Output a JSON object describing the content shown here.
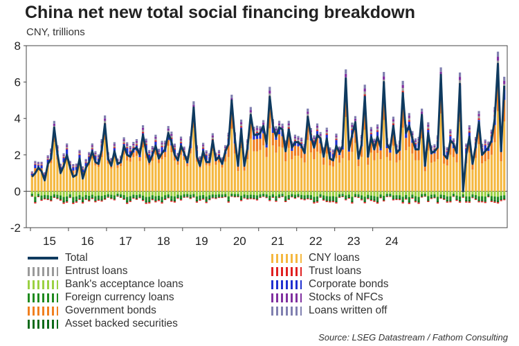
{
  "header": {
    "title": "China net new total social financing breakdown",
    "subtitle": "CNY, trillions"
  },
  "footer": {
    "source": "Source: LSEG Datastream / Fathom Consulting"
  },
  "colors": {
    "total": "#0f3a5f",
    "entrust": "#9a9a9a",
    "acceptance": "#9bd143",
    "foreign": "#1f8b1f",
    "government": "#f08020",
    "abs": "#0e6b1a",
    "cny": "#f5b840",
    "trust": "#e02020",
    "corporate": "#2030d0",
    "stocks": "#8030a0",
    "written_off": "#8080b0"
  },
  "legend": [
    {
      "key": "total",
      "label": "Total",
      "style": "line"
    },
    {
      "key": "entrust",
      "label": "Entrust loans",
      "style": "bar"
    },
    {
      "key": "acceptance",
      "label": "Bank's acceptance loans",
      "style": "bar"
    },
    {
      "key": "foreign",
      "label": "Foreign currency loans",
      "style": "bar"
    },
    {
      "key": "government",
      "label": "Government bonds",
      "style": "bar"
    },
    {
      "key": "abs",
      "label": "Asset backed securities",
      "style": "bar"
    },
    {
      "key": "cny",
      "label": "CNY loans",
      "style": "bar"
    },
    {
      "key": "trust",
      "label": "Trust loans",
      "style": "bar"
    },
    {
      "key": "corporate",
      "label": "Corporate bonds",
      "style": "bar"
    },
    {
      "key": "stocks",
      "label": "Stocks of NFCs",
      "style": "bar"
    },
    {
      "key": "written_off",
      "label": "Loans written off",
      "style": "bar"
    }
  ],
  "chart_data": {
    "type": "bar",
    "title": "China net new total social financing breakdown",
    "ylabel": "CNY, trillions",
    "ylim": [
      -2,
      8
    ],
    "yticks": [
      -2,
      0,
      2,
      4,
      6,
      8
    ],
    "x_start": "2015-01",
    "x_tick_labels": [
      "15",
      "16",
      "17",
      "18",
      "19",
      "20",
      "21",
      "22",
      "23",
      "24"
    ],
    "total": [
      0.8,
      1.0,
      1.3,
      1.1,
      0.6,
      1.5,
      1.8,
      3.5,
      2.1,
      1.0,
      1.4,
      2.0,
      1.3,
      0.8,
      0.9,
      1.8,
      0.7,
      1.3,
      1.6,
      2.2,
      1.6,
      1.5,
      2.3,
      3.7,
      1.8,
      1.4,
      2.2,
      1.5,
      1.6,
      2.5,
      2.0,
      1.9,
      2.3,
      2.4,
      2.0,
      3.1,
      2.2,
      1.6,
      2.0,
      2.5,
      1.8,
      2.1,
      2.3,
      3.2,
      2.7,
      2.0,
      1.7,
      2.5,
      2.1,
      1.6,
      2.6,
      4.6,
      1.9,
      1.4,
      2.2,
      1.6,
      1.6,
      2.8,
      1.7,
      1.9,
      1.5,
      2.2,
      2.6,
      5.0,
      2.9,
      1.4,
      3.4,
      1.4,
      2.4,
      4.2,
      3.1,
      3.1,
      3.2,
      3.6,
      2.6,
      5.2,
      3.6,
      3.0,
      3.5,
      3.4,
      2.2,
      3.4,
      2.4,
      2.7,
      2.7,
      2.5,
      2.1,
      4.1,
      3.0,
      2.4,
      3.1,
      2.9,
      1.9,
      2.9,
      1.8,
      1.7,
      2.5,
      2.1,
      2.5,
      6.2,
      2.3,
      3.1,
      3.8,
      1.8,
      2.6,
      5.2,
      1.9,
      3.0,
      2.3,
      3.0,
      2.4,
      6.0,
      2.6,
      2.3,
      3.6,
      2.1,
      2.3,
      5.4,
      3.2,
      3.6,
      2.9,
      2.3,
      2.3,
      4.2,
      1.4,
      3.2,
      2.1,
      2.2,
      2.4,
      6.4,
      2.0,
      1.8,
      2.8,
      2.6,
      2.1,
      5.9,
      0.0,
      2.0,
      3.0,
      1.5,
      2.5,
      3.8,
      2.0,
      2.2,
      2.4,
      2.8,
      4.0,
      7.0,
      2.2,
      5.8
    ]
  }
}
